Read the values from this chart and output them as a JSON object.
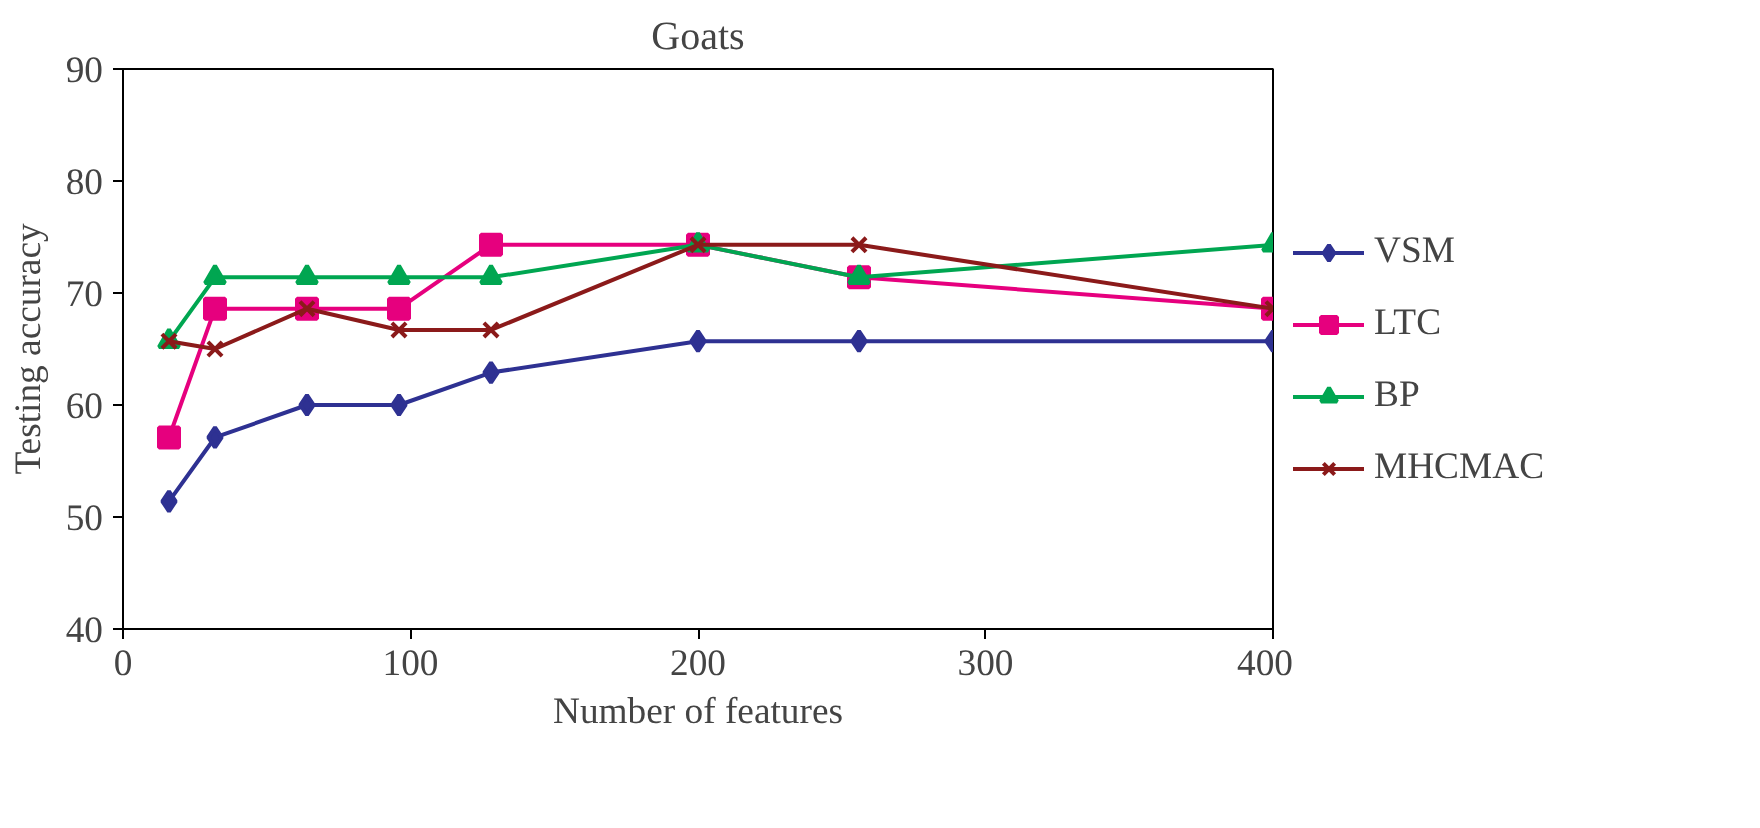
{
  "chart_data": {
    "type": "line",
    "title": "Goats",
    "xlabel": "Number of features",
    "ylabel": "Testing accuracy",
    "x": [
      16,
      32,
      64,
      96,
      128,
      200,
      256,
      400
    ],
    "xlim": [
      0,
      400
    ],
    "xticks": [
      0,
      100,
      200,
      300,
      400
    ],
    "ylim": [
      40,
      90
    ],
    "yticks": [
      40,
      50,
      60,
      70,
      80,
      90
    ],
    "grid": false,
    "legend": "right",
    "line_style": "solid",
    "series": [
      {
        "name": "VSM",
        "color": "#2e3192",
        "marker": "diamond",
        "values": [
          51.4,
          57.1,
          60,
          60,
          62.9,
          65.7,
          65.7,
          65.7
        ]
      },
      {
        "name": "LTC",
        "color": "#e6007e",
        "marker": "square",
        "values": [
          57.1,
          68.6,
          68.6,
          68.6,
          74.3,
          74.3,
          71.4,
          68.6
        ]
      },
      {
        "name": "BP",
        "color": "#00a651",
        "marker": "triangle",
        "values": [
          65.7,
          71.4,
          71.4,
          71.4,
          71.4,
          74.3,
          71.4,
          74.3
        ]
      },
      {
        "name": "MHCMAC",
        "color": "#8b1a1a",
        "marker": "cross",
        "values": [
          65.7,
          65,
          68.6,
          66.7,
          66.7,
          74.3,
          74.3,
          68.6
        ]
      }
    ]
  }
}
